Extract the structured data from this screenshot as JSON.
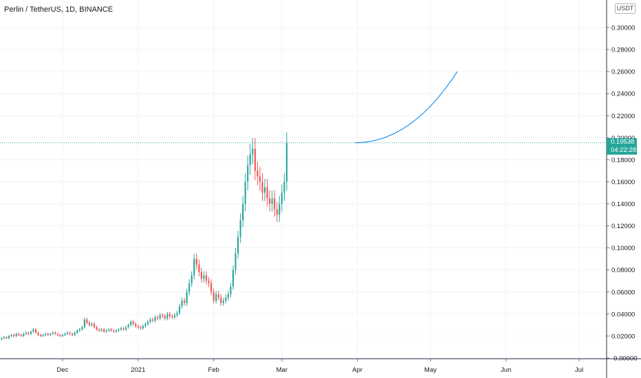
{
  "header": {
    "title": "Perlin / TetherUS, 1D, BINANCE",
    "currency_button": "USDT"
  },
  "price_scale": {
    "last_price": "0.19538",
    "countdown": "04:22:28"
  },
  "colors": {
    "up": "#26a69a",
    "down": "#ef5350",
    "projection": "#2196f3",
    "grid": "#f0f3fa",
    "last_price_line": "#26a69a"
  },
  "chart_data": {
    "type": "candlestick",
    "symbol": "Perlin / TetherUS",
    "interval": "1D",
    "exchange": "BINANCE",
    "ylim": [
      -0.005,
      0.33
    ],
    "y_ticks": [
      "0.30000",
      "0.28000",
      "0.26000",
      "0.24000",
      "0.22000",
      "0.20000",
      "0.18000",
      "0.16000",
      "0.14000",
      "0.12000",
      "0.10000",
      "0.08000",
      "0.06000",
      "0.04000",
      "0.02000",
      "-0.00000"
    ],
    "x_ticks": [
      "Dec",
      "2021",
      "Feb",
      "Mar",
      "Apr",
      "May",
      "Jun",
      "Jul"
    ],
    "x_tick_dates": [
      "2020-12-01",
      "2021-01-01",
      "2021-02-01",
      "2021-03-01",
      "2021-04-01",
      "2021-05-01",
      "2021-06-01",
      "2021-07-01"
    ],
    "last_price": 0.19538,
    "candles_start_date": "2020-11-05",
    "closes": [
      0.017,
      0.018,
      0.019,
      0.018,
      0.02,
      0.021,
      0.02,
      0.022,
      0.021,
      0.02,
      0.022,
      0.023,
      0.022,
      0.024,
      0.026,
      0.023,
      0.021,
      0.02,
      0.021,
      0.022,
      0.021,
      0.022,
      0.023,
      0.022,
      0.021,
      0.02,
      0.021,
      0.022,
      0.023,
      0.022,
      0.021,
      0.023,
      0.025,
      0.026,
      0.028,
      0.035,
      0.032,
      0.03,
      0.031,
      0.028,
      0.026,
      0.025,
      0.026,
      0.024,
      0.025,
      0.026,
      0.025,
      0.024,
      0.025,
      0.026,
      0.027,
      0.026,
      0.028,
      0.03,
      0.033,
      0.031,
      0.029,
      0.028,
      0.027,
      0.029,
      0.031,
      0.033,
      0.035,
      0.034,
      0.037,
      0.036,
      0.039,
      0.038,
      0.036,
      0.04,
      0.038,
      0.037,
      0.039,
      0.041,
      0.047,
      0.052,
      0.05,
      0.06,
      0.068,
      0.075,
      0.09,
      0.085,
      0.078,
      0.072,
      0.075,
      0.07,
      0.068,
      0.06,
      0.052,
      0.058,
      0.055,
      0.05,
      0.052,
      0.055,
      0.058,
      0.065,
      0.08,
      0.095,
      0.11,
      0.125,
      0.14,
      0.16,
      0.175,
      0.185,
      0.19,
      0.17,
      0.165,
      0.16,
      0.15,
      0.155,
      0.145,
      0.14,
      0.145,
      0.135,
      0.13,
      0.14,
      0.15,
      0.16,
      0.195
    ],
    "projection": {
      "style": "curve",
      "start": {
        "date": "2021-03-31",
        "value": 0.19538
      },
      "end": {
        "date": "2021-05-12",
        "value": 0.26
      }
    }
  }
}
